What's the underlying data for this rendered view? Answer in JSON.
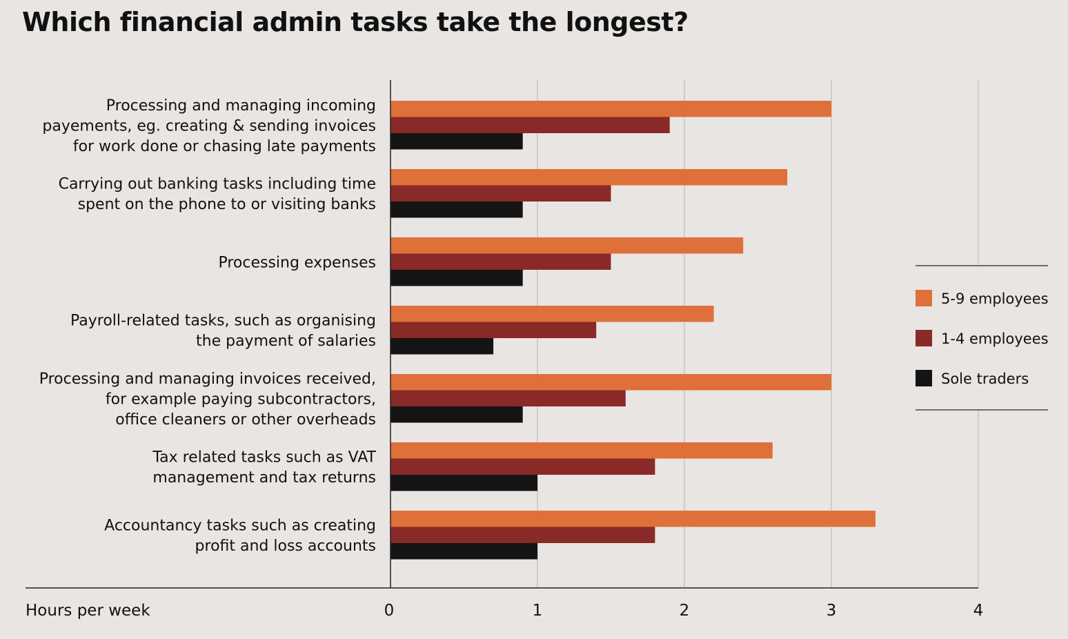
{
  "chart_data": {
    "type": "bar",
    "orientation": "horizontal",
    "title": "Which financial admin tasks take the longest?",
    "xlabel": "Hours per week",
    "xlim": [
      0,
      4
    ],
    "xticks": [
      "0",
      "1",
      "2",
      "3",
      "4"
    ],
    "grid": true,
    "legend_position": "right",
    "categories": [
      [
        "Processing and managing incoming",
        "payements, eg. creating & sending invoices",
        "for work done or chasing late payments"
      ],
      [
        "Carrying out banking tasks including time",
        "spent on the phone to or visiting banks"
      ],
      [
        "Processing expenses"
      ],
      [
        "Payroll-related tasks, such as organising",
        "the payment of salaries"
      ],
      [
        "Processing and managing invoices received,",
        "for example paying subcontractors,",
        "office cleaners or other overheads"
      ],
      [
        "Tax related tasks such as VAT",
        "management and tax returns"
      ],
      [
        "Accountancy tasks such as creating",
        "profit and loss accounts"
      ]
    ],
    "series": [
      {
        "name": "5-9 employees",
        "color": "#e0703a",
        "values": [
          3.0,
          2.7,
          2.4,
          2.2,
          3.0,
          2.6,
          3.3
        ]
      },
      {
        "name": "1-4 employees",
        "color": "#8a2a28",
        "values": [
          1.9,
          1.5,
          1.5,
          1.4,
          1.6,
          1.8,
          1.8
        ]
      },
      {
        "name": "Sole traders",
        "color": "#141414",
        "values": [
          0.9,
          0.9,
          0.9,
          0.7,
          0.9,
          1.0,
          1.0
        ]
      }
    ]
  }
}
